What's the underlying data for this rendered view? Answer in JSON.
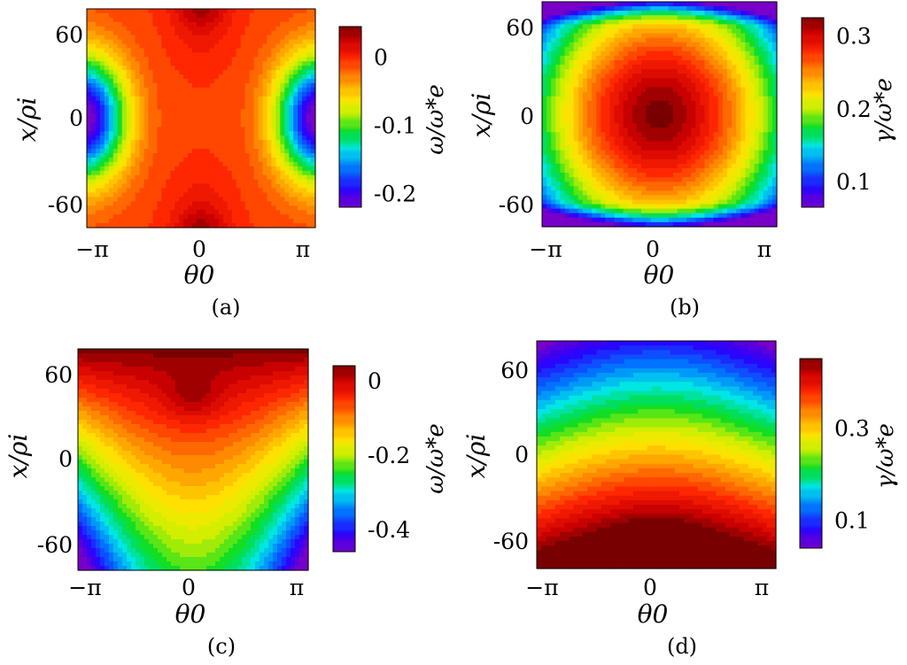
{
  "chart_data": [
    {
      "type": "heatmap",
      "panel_label": "(a)",
      "xlabel": "θ0",
      "ylabel": "x/ρi",
      "x_ticks": [
        "−π",
        "0",
        "π"
      ],
      "y_ticks": [
        "60",
        "0",
        "-60"
      ],
      "xlim": [
        -3.1416,
        3.1416
      ],
      "ylim": [
        -75,
        75
      ],
      "colorbar": {
        "label": "ω/ω*e",
        "ticks": [
          "0",
          "-0.1",
          "-0.2"
        ],
        "tick_values": [
          0,
          -0.1,
          -0.2
        ],
        "range": [
          -0.22,
          0.045
        ]
      },
      "description_values": {
        "center_value": -0.02,
        "top_bottom_center": 0.04,
        "sides_center": -0.21
      }
    },
    {
      "type": "heatmap",
      "panel_label": "(b)",
      "xlabel": "θ0",
      "ylabel": "x/ρi",
      "x_ticks": [
        "−π",
        "0",
        "π"
      ],
      "y_ticks": [
        "60",
        "0",
        "-60"
      ],
      "xlim": [
        -3.1416,
        3.1416
      ],
      "ylim": [
        -75,
        75
      ],
      "colorbar": {
        "label": "γ/ω*e",
        "ticks": [
          "0.3",
          "0.2",
          "0.1"
        ],
        "tick_values": [
          0.3,
          0.2,
          0.1
        ],
        "range": [
          0.065,
          0.325
        ]
      },
      "description_values": {
        "center_value": 0.32,
        "edge_value": 0.07
      }
    },
    {
      "type": "heatmap",
      "panel_label": "(c)",
      "xlabel": "θ0",
      "ylabel": "x/ρi",
      "x_ticks": [
        "−π",
        "0",
        "π"
      ],
      "y_ticks": [
        "60",
        "0",
        "-60"
      ],
      "xlim": [
        -3.1416,
        3.1416
      ],
      "ylim": [
        -75,
        75
      ],
      "colorbar": {
        "label": "ω/ω*e",
        "ticks": [
          "0",
          "-0.2",
          "-0.4"
        ],
        "tick_values": [
          0,
          -0.2,
          -0.4
        ],
        "range": [
          -0.46,
          0.04
        ]
      },
      "description_values": {
        "top_center": 0.03,
        "bottom_corners": -0.45
      }
    },
    {
      "type": "heatmap",
      "panel_label": "(d)",
      "xlabel": "θ0",
      "ylabel": "x/ρi",
      "x_ticks": [
        "−π",
        "0",
        "π"
      ],
      "y_ticks": [
        "60",
        "0",
        "-60"
      ],
      "xlim": [
        -3.1416,
        3.1416
      ],
      "ylim": [
        -75,
        75
      ],
      "colorbar": {
        "label": "γ/ω*e",
        "ticks": [
          "0.3",
          "0.1"
        ],
        "tick_values": [
          0.3,
          0.1
        ],
        "range": [
          0.04,
          0.45
        ]
      },
      "description_values": {
        "bottom_center": 0.44,
        "top": 0.05
      }
    }
  ]
}
